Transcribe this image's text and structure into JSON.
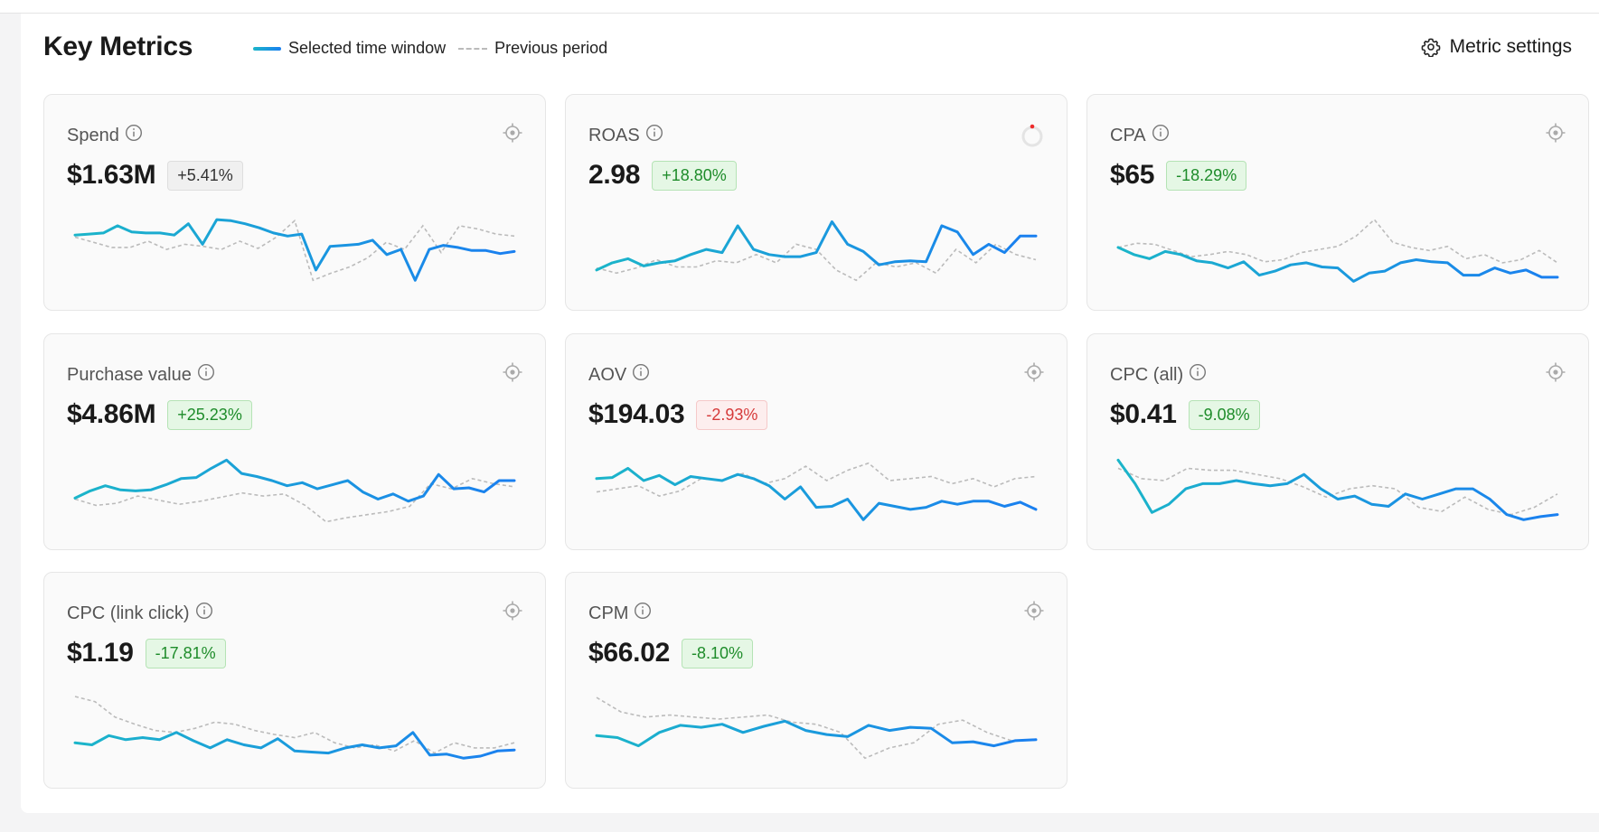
{
  "header": {
    "title": "Key Metrics",
    "legend_current": "Selected time window",
    "legend_previous": "Previous period",
    "settings_label": "Metric settings"
  },
  "colors": {
    "line_start": "#1bb5c9",
    "line_end": "#1a7ff0",
    "previous": "#bbbbbb",
    "good": "#1e8c2a",
    "bad": "#d63a3a"
  },
  "cards": [
    {
      "label": "Spend",
      "value": "$1.63M",
      "change": "+5.41%",
      "tone": "neutral",
      "icon": "crosshair-icon",
      "current": [
        49,
        50,
        51,
        58,
        52,
        51,
        51,
        49,
        60,
        40,
        64,
        63,
        60,
        56,
        51,
        48,
        50,
        15,
        38,
        39,
        40,
        44,
        30,
        35,
        5,
        35,
        39,
        37,
        34,
        34,
        31,
        33
      ],
      "previous": [
        47,
        42,
        37,
        37,
        43,
        35,
        40,
        38,
        35,
        43,
        36,
        47,
        63,
        5,
        12,
        18,
        27,
        42,
        35,
        58,
        32,
        58,
        55,
        50,
        48
      ]
    },
    {
      "label": "ROAS",
      "value": "2.98",
      "change": "+18.80%",
      "tone": "good",
      "icon": "loading-spinner-icon",
      "current": [
        15,
        22,
        26,
        19,
        22,
        24,
        30,
        35,
        32,
        58,
        35,
        30,
        28,
        28,
        32,
        62,
        40,
        33,
        20,
        23,
        24,
        23,
        58,
        52,
        30,
        40,
        32,
        48,
        48
      ],
      "previous": [
        17,
        12,
        17,
        25,
        18,
        18,
        24,
        22,
        30,
        22,
        40,
        35,
        15,
        5,
        22,
        18,
        22,
        12,
        35,
        22,
        40,
        30,
        25
      ]
    },
    {
      "label": "CPA",
      "value": "$65",
      "change": "-18.29%",
      "tone": "good",
      "icon": "crosshair-icon",
      "current": [
        37,
        30,
        26,
        33,
        30,
        24,
        22,
        17,
        23,
        10,
        14,
        20,
        22,
        18,
        17,
        4,
        12,
        14,
        22,
        25,
        23,
        22,
        10,
        10,
        17,
        12,
        15,
        8,
        8
      ],
      "previous": [
        37,
        41,
        40,
        34,
        28,
        30,
        33,
        30,
        23,
        25,
        32,
        35,
        38,
        48,
        64,
        42,
        37,
        34,
        38,
        26,
        30,
        22,
        25,
        34,
        22
      ]
    },
    {
      "label": "Purchase value",
      "value": "$4.86M",
      "change": "+25.23%",
      "tone": "good",
      "icon": "crosshair-icon",
      "current": [
        26,
        33,
        38,
        34,
        33,
        34,
        39,
        45,
        46,
        55,
        63,
        50,
        47,
        43,
        38,
        41,
        35,
        39,
        43,
        32,
        25,
        30,
        23,
        28,
        49,
        35,
        36,
        32,
        43,
        43
      ],
      "previous": [
        25,
        19,
        21,
        28,
        24,
        20,
        23,
        27,
        31,
        28,
        30,
        19,
        3,
        7,
        10,
        13,
        18,
        40,
        35,
        45,
        40,
        37
      ]
    },
    {
      "label": "AOV",
      "value": "$194.03",
      "change": "-2.93%",
      "tone": "bad",
      "icon": "crosshair-icon",
      "current": [
        45,
        46,
        55,
        43,
        48,
        39,
        47,
        45,
        43,
        49,
        45,
        38,
        25,
        37,
        17,
        18,
        25,
        5,
        21,
        18,
        15,
        17,
        23,
        20,
        23,
        23,
        18,
        22,
        15
      ],
      "previous": [
        32,
        35,
        38,
        28,
        33,
        45,
        43,
        50,
        40,
        45,
        57,
        43,
        53,
        60,
        43,
        45,
        47,
        40,
        45,
        37,
        45,
        47
      ]
    },
    {
      "label": "CPC (all)",
      "value": "$0.41",
      "change": "-9.08%",
      "tone": "good",
      "icon": "crosshair-icon",
      "current": [
        63,
        40,
        12,
        20,
        35,
        40,
        40,
        43,
        40,
        38,
        40,
        49,
        35,
        25,
        28,
        20,
        18,
        30,
        25,
        30,
        35,
        35,
        25,
        10,
        5,
        8,
        10
      ],
      "previous": [
        55,
        45,
        43,
        55,
        53,
        53,
        49,
        45,
        37,
        27,
        35,
        38,
        35,
        17,
        13,
        27,
        15,
        10,
        17,
        30
      ]
    },
    {
      "label": "CPC (link click)",
      "value": "$1.19",
      "change": "-17.81%",
      "tone": "good",
      "icon": "crosshair-icon",
      "current": [
        20,
        18,
        27,
        23,
        25,
        23,
        30,
        22,
        15,
        23,
        18,
        15,
        24,
        12,
        11,
        10,
        15,
        18,
        15,
        17,
        30,
        8,
        9,
        5,
        7,
        12,
        13
      ],
      "previous": [
        65,
        60,
        45,
        38,
        32,
        30,
        34,
        40,
        38,
        32,
        28,
        25,
        30,
        20,
        15,
        18,
        12,
        22,
        10,
        20,
        15,
        15,
        20
      ]
    },
    {
      "label": "CPM",
      "value": "$66.02",
      "change": "-8.10%",
      "tone": "good",
      "icon": "crosshair-icon",
      "current": [
        27,
        25,
        17,
        30,
        37,
        35,
        38,
        30,
        36,
        41,
        32,
        28,
        26,
        37,
        32,
        35,
        34,
        20,
        21,
        17,
        22,
        23
      ],
      "previous": [
        64,
        50,
        45,
        47,
        45,
        43,
        45,
        47,
        40,
        38,
        30,
        5,
        15,
        20,
        38,
        42,
        30,
        22,
        23
      ]
    }
  ]
}
